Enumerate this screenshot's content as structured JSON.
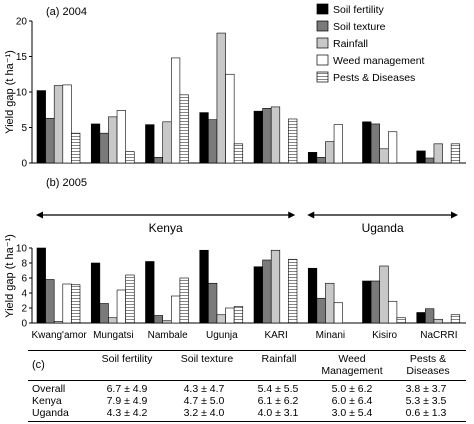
{
  "chart_data": [
    {
      "type": "bar",
      "panel_label": "(a) 2004",
      "ylabel": "Yield gap (t ha⁻¹)",
      "ylim": [
        0,
        20
      ],
      "yticks": [
        0,
        5,
        10,
        15,
        20
      ],
      "categories": [
        "Kwang'amor",
        "Mungatsi",
        "Nambale",
        "Ugunja",
        "KARI",
        "Minani",
        "Kisiro",
        "NaCRRI"
      ],
      "series": [
        {
          "name": "Soil fertility",
          "values": [
            10.2,
            5.5,
            5.4,
            7.1,
            7.3,
            1.5,
            5.8,
            1.7
          ]
        },
        {
          "name": "Soil texture",
          "values": [
            6.3,
            4.2,
            0.8,
            6.1,
            7.7,
            0.8,
            5.5,
            0.7
          ]
        },
        {
          "name": "Rainfall",
          "values": [
            10.9,
            6.5,
            5.8,
            18.3,
            7.9,
            3.0,
            2.0,
            2.7
          ]
        },
        {
          "name": "Weed management",
          "values": [
            11.0,
            7.4,
            14.8,
            12.5,
            0,
            5.4,
            4.4,
            0
          ]
        },
        {
          "name": "Pests & Diseases",
          "values": [
            4.2,
            1.6,
            9.6,
            2.7,
            6.2,
            0,
            0,
            2.7
          ]
        }
      ]
    },
    {
      "type": "bar",
      "panel_label": "(b) 2005",
      "ylabel": "Yield gap (t ha⁻¹)",
      "ylim": [
        0,
        10
      ],
      "yticks": [
        0,
        2,
        4,
        6,
        8,
        10
      ],
      "categories": [
        "Kwang'amor",
        "Mungatsi",
        "Nambale",
        "Ugunja",
        "KARI",
        "Minani",
        "Kisiro",
        "NaCRRI"
      ],
      "annotations": [
        {
          "text": "Kenya",
          "span": [
            "Kwang'amor",
            "KARI"
          ]
        },
        {
          "text": "Uganda",
          "span": [
            "Minani",
            "NaCRRI"
          ]
        }
      ],
      "series": [
        {
          "name": "Soil fertility",
          "values": [
            10.0,
            8.0,
            8.2,
            9.7,
            7.5,
            7.3,
            5.6,
            1.4
          ]
        },
        {
          "name": "Soil texture",
          "values": [
            5.8,
            2.6,
            1.0,
            5.3,
            8.4,
            3.3,
            5.6,
            1.9
          ]
        },
        {
          "name": "Rainfall",
          "values": [
            0.2,
            0.7,
            0.3,
            1.1,
            9.7,
            5.3,
            7.6,
            0.5
          ]
        },
        {
          "name": "Weed management",
          "values": [
            5.2,
            4.4,
            3.6,
            2.0,
            0,
            2.7,
            2.9,
            0
          ]
        },
        {
          "name": "Pests & Diseases",
          "values": [
            5.1,
            6.4,
            6.0,
            2.2,
            8.5,
            0,
            0.7,
            1.1
          ]
        }
      ]
    },
    {
      "type": "table",
      "panel_label": "(c)",
      "columns": [
        "Soil fertility",
        "Soil texture",
        "Rainfall",
        "Weed Management",
        "Pests & Diseases"
      ],
      "rows": [
        {
          "label": "Overall",
          "values": [
            "6.7 ± 4.9",
            "4.3 ± 4.7",
            "5.4 ± 5.5",
            "5.0 ± 6.2",
            "3.8 ± 3.7"
          ]
        },
        {
          "label": "Kenya",
          "values": [
            "7.9 ± 4.9",
            "4.7 ± 5.0",
            "6.1 ± 6.2",
            "6.0 ± 6.4",
            "5.3 ± 3.5"
          ]
        },
        {
          "label": "Uganda",
          "values": [
            "4.3 ± 4.2",
            "3.2 ± 4.0",
            "4.0 ± 3.1",
            "3.0 ± 5.4",
            "0.6 ± 1.3"
          ]
        }
      ]
    }
  ],
  "legend": {
    "placement": "top-right",
    "items": [
      {
        "name": "Soil fertility",
        "fill": "#000000",
        "pattern": "solid"
      },
      {
        "name": "Soil texture",
        "fill": "#7a7a7a",
        "pattern": "solid"
      },
      {
        "name": "Rainfall",
        "fill": "#c8c8c8",
        "pattern": "solid"
      },
      {
        "name": "Weed management",
        "fill": "#ffffff",
        "pattern": "solid"
      },
      {
        "name": "Pests & Diseases",
        "fill": "#ffffff",
        "pattern": "hstripes"
      }
    ]
  }
}
